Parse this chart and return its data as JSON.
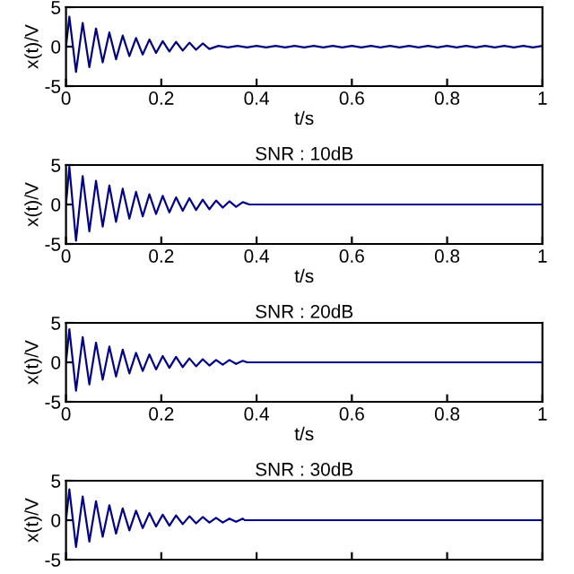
{
  "chart_data": [
    {
      "type": "line",
      "xlabel": "t/s",
      "ylabel": "x(t)/V",
      "xlim": [
        0,
        1
      ],
      "ylim": [
        -5,
        5
      ],
      "xticks": [
        0,
        0.2,
        0.4,
        0.6,
        0.8,
        1
      ],
      "yticks": [
        -5,
        0,
        5
      ],
      "grid": false,
      "series": [
        {
          "color": "#000080",
          "x": [
            0,
            0.007,
            0.021,
            0.035,
            0.049,
            0.063,
            0.077,
            0.091,
            0.105,
            0.119,
            0.133,
            0.147,
            0.161,
            0.175,
            0.189,
            0.203,
            0.217,
            0.231,
            0.245,
            0.259,
            0.273,
            0.287,
            0.301,
            0.32,
            0.34,
            0.36,
            0.38,
            0.4,
            0.42,
            0.44,
            0.46,
            0.48,
            0.5,
            0.52,
            0.54,
            0.56,
            0.58,
            0.6,
            0.62,
            0.64,
            0.66,
            0.68,
            0.7,
            0.72,
            0.74,
            0.76,
            0.78,
            0.8,
            0.82,
            0.84,
            0.86,
            0.88,
            0.9,
            0.92,
            0.94,
            0.96,
            0.98,
            1.0
          ],
          "values": [
            0,
            3.8,
            -3.2,
            3.0,
            -2.6,
            2.3,
            -2.0,
            1.8,
            -1.6,
            1.4,
            -1.2,
            1.1,
            -1.0,
            0.9,
            -0.8,
            0.7,
            -0.6,
            0.6,
            -0.5,
            0.5,
            -0.4,
            0.4,
            -0.3,
            0.1,
            -0.1,
            0.1,
            -0.1,
            0.1,
            -0.1,
            0.1,
            -0.1,
            0.1,
            -0.1,
            0.1,
            -0.1,
            0.1,
            -0.1,
            0.1,
            -0.1,
            0.1,
            -0.1,
            0.1,
            -0.1,
            0.1,
            -0.1,
            0.1,
            -0.1,
            0.1,
            -0.1,
            0.1,
            -0.1,
            0.1,
            -0.1,
            0.1,
            -0.1,
            0.1,
            -0.1,
            0.1
          ]
        }
      ]
    },
    {
      "type": "line",
      "title": "SNR : 10dB",
      "xlabel": "t/s",
      "ylabel": "x(t)/V",
      "xlim": [
        0,
        1
      ],
      "ylim": [
        -5,
        5
      ],
      "xticks": [
        0,
        0.2,
        0.4,
        0.6,
        0.8,
        1
      ],
      "yticks": [
        -5,
        0,
        5
      ],
      "grid": false,
      "series": [
        {
          "color": "#00008b",
          "x": [
            0,
            0.007,
            0.021,
            0.035,
            0.049,
            0.063,
            0.077,
            0.091,
            0.105,
            0.119,
            0.133,
            0.147,
            0.161,
            0.175,
            0.189,
            0.203,
            0.217,
            0.231,
            0.245,
            0.259,
            0.273,
            0.287,
            0.301,
            0.315,
            0.329,
            0.343,
            0.357,
            0.371,
            0.385,
            1.0
          ],
          "values": [
            0,
            4.8,
            -4.6,
            3.6,
            -3.4,
            3.0,
            -2.8,
            2.4,
            -2.2,
            2.0,
            -1.8,
            1.6,
            -1.5,
            1.3,
            -1.2,
            1.1,
            -1.0,
            0.9,
            -0.8,
            0.8,
            -0.7,
            0.6,
            -0.6,
            0.5,
            -0.4,
            0.4,
            -0.3,
            0.3,
            0,
            0
          ]
        }
      ]
    },
    {
      "type": "line",
      "title": "SNR : 20dB",
      "xlabel": "t/s",
      "ylabel": "x(t)/V",
      "xlim": [
        0,
        1
      ],
      "ylim": [
        -5,
        5
      ],
      "xticks": [
        0,
        0.2,
        0.4,
        0.6,
        0.8,
        1
      ],
      "yticks": [
        -5,
        0,
        5
      ],
      "grid": false,
      "series": [
        {
          "color": "#00008b",
          "x": [
            0,
            0.007,
            0.021,
            0.035,
            0.049,
            0.063,
            0.077,
            0.091,
            0.105,
            0.119,
            0.133,
            0.147,
            0.161,
            0.175,
            0.189,
            0.203,
            0.217,
            0.231,
            0.245,
            0.259,
            0.273,
            0.287,
            0.301,
            0.315,
            0.329,
            0.343,
            0.357,
            0.371,
            0.38,
            1.0
          ],
          "values": [
            0,
            4.2,
            -3.6,
            3.2,
            -2.8,
            2.5,
            -2.2,
            2.0,
            -1.8,
            1.6,
            -1.4,
            1.2,
            -1.1,
            1.0,
            -0.9,
            0.8,
            -0.7,
            0.7,
            -0.6,
            0.5,
            -0.5,
            0.4,
            -0.4,
            0.3,
            -0.3,
            0.3,
            -0.2,
            0.2,
            0,
            0
          ]
        }
      ]
    },
    {
      "type": "line",
      "title": "SNR : 30dB",
      "ylabel": "x(t)/V",
      "xlim": [
        0,
        1
      ],
      "ylim": [
        -5,
        5
      ],
      "xticks": [
        0,
        0.2,
        0.4,
        0.6,
        0.8,
        1
      ],
      "yticks": [
        -5,
        0,
        5
      ],
      "grid": false,
      "tick_labels": "y",
      "series": [
        {
          "color": "#00008b",
          "x": [
            0,
            0.007,
            0.021,
            0.035,
            0.049,
            0.063,
            0.077,
            0.091,
            0.105,
            0.119,
            0.133,
            0.147,
            0.161,
            0.175,
            0.189,
            0.203,
            0.217,
            0.231,
            0.245,
            0.259,
            0.273,
            0.287,
            0.301,
            0.315,
            0.329,
            0.343,
            0.357,
            0.371,
            0.375,
            1.0
          ],
          "values": [
            0,
            3.9,
            -3.4,
            3.0,
            -2.7,
            2.4,
            -2.1,
            1.9,
            -1.7,
            1.5,
            -1.3,
            1.2,
            -1.0,
            0.9,
            -0.8,
            0.7,
            -0.7,
            0.6,
            -0.5,
            0.5,
            -0.4,
            0.4,
            -0.3,
            0.3,
            -0.3,
            0.2,
            -0.2,
            0.2,
            0,
            0
          ]
        }
      ]
    }
  ]
}
